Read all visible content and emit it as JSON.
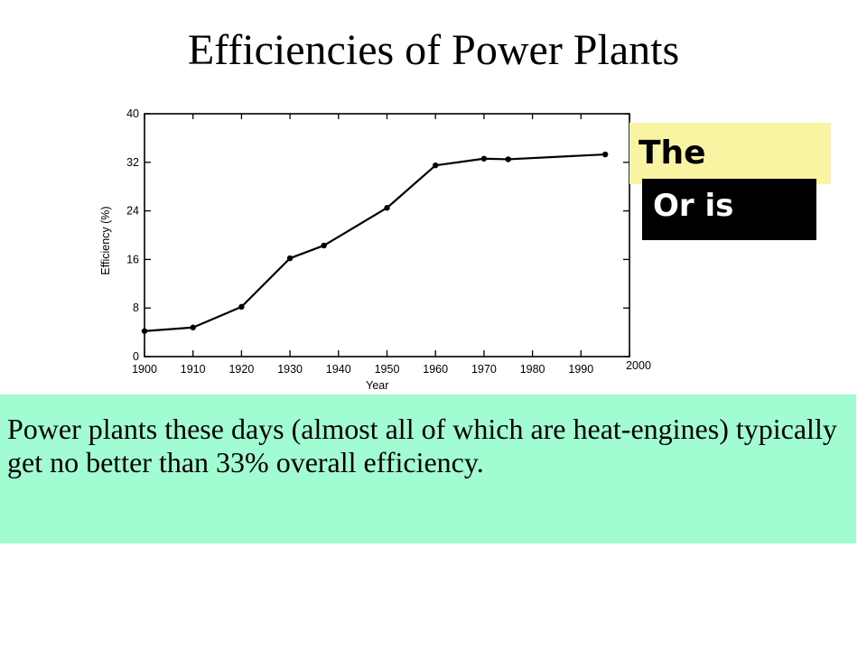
{
  "slide": {
    "title": "Efficiencies of Power Plants",
    "callout_top": "The",
    "callout_bottom": "Or is",
    "caption": "Power plants these days (almost all of which are heat-engines) typically get no better than 33% overall efficiency.",
    "colors": {
      "callout_top_bg": "#f8f4a2",
      "callout_bottom_bg": "#000000",
      "caption_bg": "#a2fcd2"
    }
  },
  "chart_data": {
    "type": "line",
    "title": "",
    "xlabel": "Year",
    "ylabel": "Efficiency (%)",
    "xlim": [
      1900,
      2000
    ],
    "ylim": [
      0,
      40
    ],
    "x_ticks": [
      "1900",
      "1910",
      "1920",
      "1930",
      "1940",
      "1950",
      "1960",
      "1970",
      "1980",
      "1990",
      "2000"
    ],
    "y_ticks": [
      "0",
      "8",
      "16",
      "24",
      "32",
      "40"
    ],
    "grid": false,
    "legend": "none",
    "series": [
      {
        "x": [
          1900,
          1910,
          1920,
          1930,
          1937,
          1950,
          1960,
          1970,
          1975,
          1995
        ],
        "values": [
          4.2,
          4.8,
          8.2,
          16.2,
          18.3,
          24.5,
          31.5,
          32.6,
          32.5,
          33.3
        ]
      }
    ]
  }
}
